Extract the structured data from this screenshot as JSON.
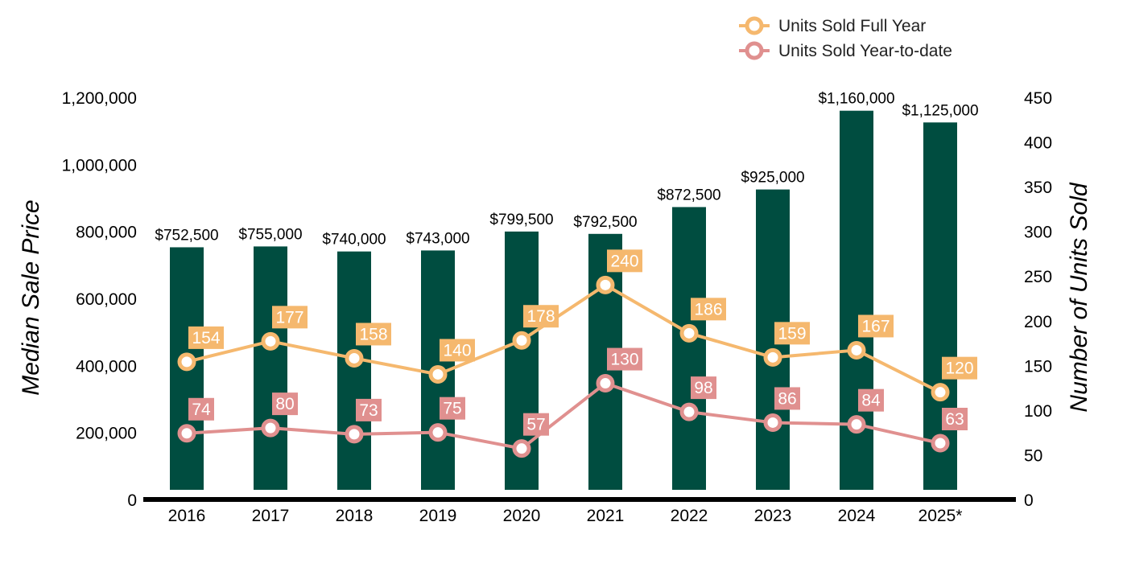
{
  "chart_data": {
    "type": "bar",
    "categories": [
      "2016",
      "2017",
      "2018",
      "2019",
      "2020",
      "2021",
      "2022",
      "2023",
      "2024",
      "2025*"
    ],
    "bar_series": {
      "values": [
        752500,
        755000,
        740000,
        743000,
        799500,
        792500,
        872500,
        925000,
        1160000,
        1125000
      ],
      "labels": [
        "$752,500",
        "$755,000",
        "$740,000",
        "$743,000",
        "$799,500",
        "$792,500",
        "$872,500",
        "$925,000",
        "$1,160,000",
        "$1,125,000"
      ],
      "color": "#004d40"
    },
    "line_series": [
      {
        "name": "Units Sold Full Year",
        "values": [
          154,
          177,
          158,
          140,
          178,
          240,
          186,
          159,
          167,
          120
        ],
        "labels": [
          "154",
          "177",
          "158",
          "140",
          "178",
          "240",
          "186",
          "159",
          "167",
          "120"
        ],
        "color": "#f5b86e"
      },
      {
        "name": "Units Sold Year-to-date",
        "values": [
          74,
          80,
          73,
          75,
          57,
          130,
          98,
          86,
          84,
          63
        ],
        "labels": [
          "74",
          "80",
          "73",
          "75",
          "57",
          "130",
          "98",
          "86",
          "84",
          "63"
        ],
        "color": "#e0908f"
      }
    ],
    "ylabel": "Median Sale Price",
    "y2label": "Number of Units Sold",
    "ylim": [
      0,
      1200000
    ],
    "y2lim": [
      0,
      450
    ],
    "yticks": [
      0,
      200000,
      400000,
      600000,
      800000,
      1000000,
      1200000
    ],
    "yticklabels": [
      "0",
      "200,000",
      "400,000",
      "600,000",
      "800,000",
      "1,000,000",
      "1,200,000"
    ],
    "y2ticks": [
      0,
      50,
      100,
      150,
      200,
      250,
      300,
      350,
      400,
      450
    ],
    "y2ticklabels": [
      "0",
      "50",
      "100",
      "150",
      "200",
      "250",
      "300",
      "350",
      "400",
      "450"
    ],
    "legend_position": "top-right",
    "grid": false
  }
}
